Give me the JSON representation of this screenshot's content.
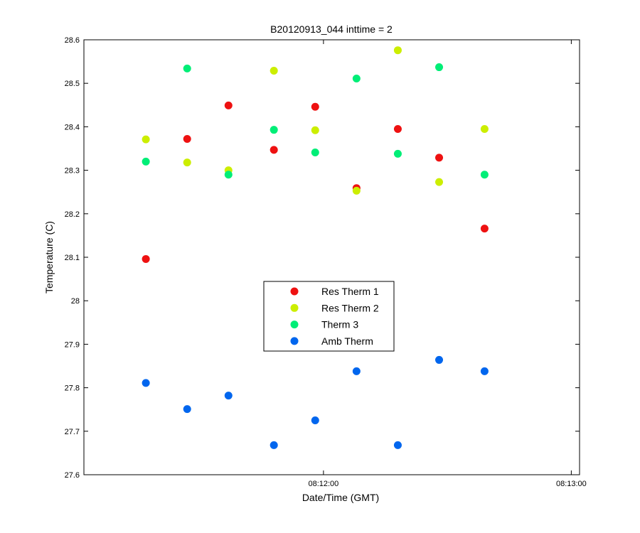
{
  "chart_data": {
    "type": "scatter",
    "title": "B20120913_044 inttime = 2",
    "xlabel": "Date/Time (GMT)",
    "ylabel": "Temperature (C)",
    "ylim": [
      27.6,
      28.6
    ],
    "y_ticks": [
      "27.6",
      "27.7",
      "27.8",
      "27.9",
      "28",
      "28.1",
      "28.2",
      "28.3",
      "28.4",
      "28.5",
      "28.6"
    ],
    "xlim": [
      "08:11:02",
      "08:13:02"
    ],
    "x_ticks": [
      "08:12:00",
      "08:13:00"
    ],
    "x": [
      "08:11:17",
      "08:11:27",
      "08:11:37",
      "08:11:48",
      "08:11:58",
      "08:12:08",
      "08:12:18",
      "08:12:28",
      "08:12:39"
    ],
    "grid": false,
    "legend_position": "center",
    "series": [
      {
        "name": "Res Therm 1",
        "color": "#ee1111",
        "values": [
          28.096,
          28.372,
          28.449,
          28.347,
          28.446,
          28.259,
          28.395,
          28.329,
          28.166
        ]
      },
      {
        "name": "Res Therm 2",
        "color": "#ccee00",
        "values": [
          28.371,
          28.318,
          28.3,
          28.529,
          28.392,
          28.253,
          28.576,
          28.273,
          28.395
        ]
      },
      {
        "name": "Therm 3",
        "color": "#00ee77",
        "values": [
          28.32,
          28.534,
          28.29,
          28.393,
          28.341,
          28.511,
          28.338,
          28.537,
          28.29
        ]
      },
      {
        "name": "Amb Therm",
        "color": "#0066ee",
        "values": [
          27.811,
          27.751,
          27.782,
          27.668,
          27.725,
          27.838,
          27.668,
          27.864,
          27.838
        ]
      }
    ]
  }
}
